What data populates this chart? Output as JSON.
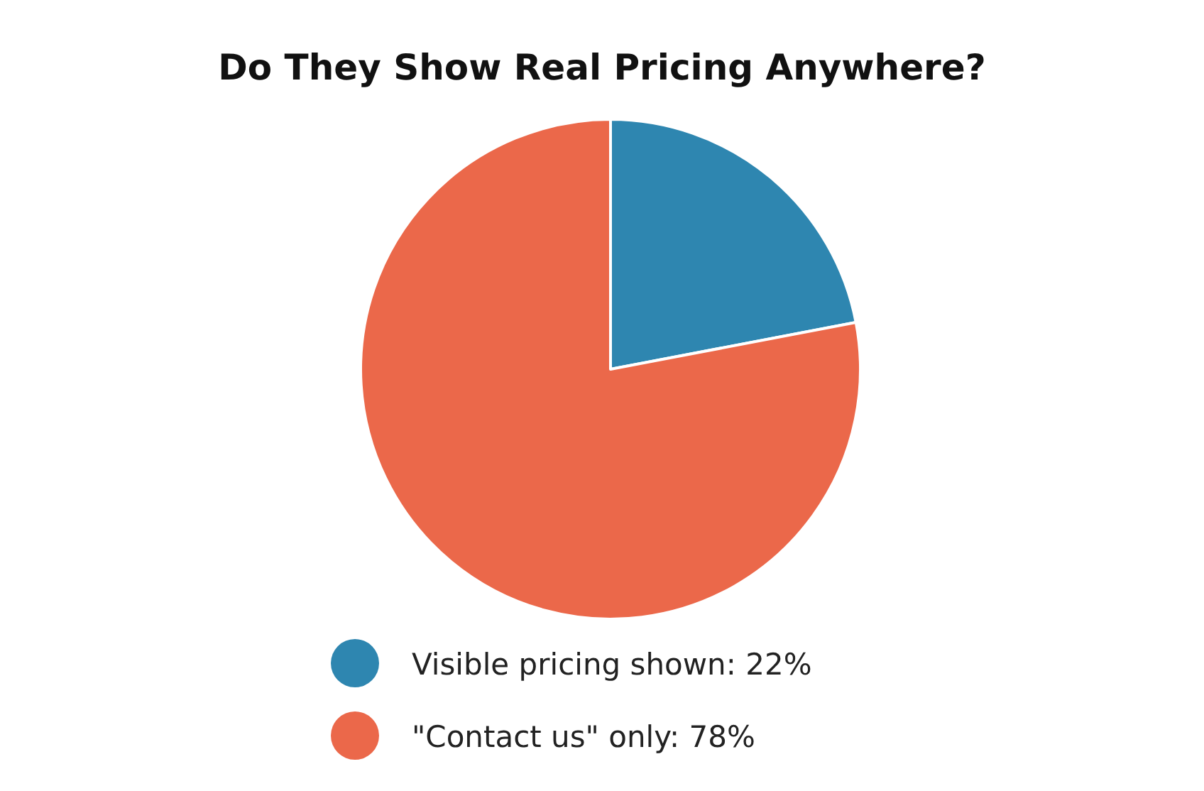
{
  "chart_data": {
    "type": "pie",
    "title": "Do They Show Real Pricing Anywhere?",
    "categories": [
      "Visible pricing shown: 22%",
      "\"Contact us\" only: 78%"
    ],
    "values": [
      22,
      78
    ],
    "colors": [
      "#2e86b0",
      "#eb684a"
    ],
    "legend": "bottom"
  }
}
